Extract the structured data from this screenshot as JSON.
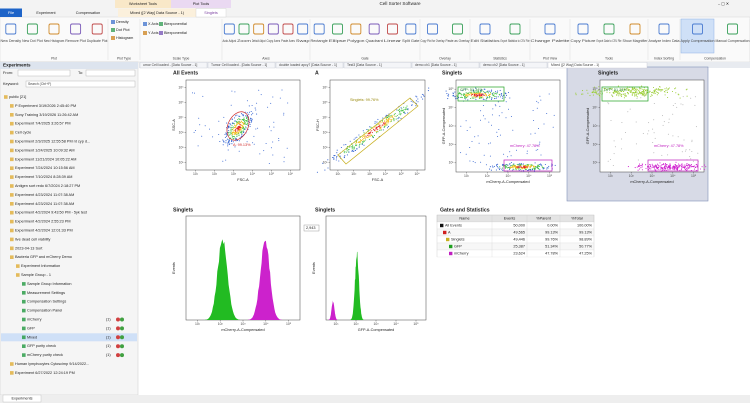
{
  "window": {
    "title": "Cell Sorter Software",
    "context_tabs": [
      "Worksheet Tools",
      "Plot Tools"
    ]
  },
  "tabs": [
    "File",
    "Experiment",
    "Compensation",
    "Mixed ([2 Way] Data Source - 1)",
    "Singlets"
  ],
  "ribbon": [
    {
      "label": "Plot",
      "buttons": [
        "New Density",
        "New Dot Plot",
        "New Histogram",
        "Remove Plot",
        "Duplicate Plot"
      ]
    },
    {
      "label": "Plot Type",
      "buttons": [
        "Density",
        "Dot Plot",
        "Histogram"
      ]
    },
    {
      "label": "Scale Type",
      "buttons": [
        "X Axis",
        "Biexponential",
        "Y Axis",
        "Biexponential"
      ]
    },
    {
      "label": "Axes",
      "buttons": [
        "Auto Adjust",
        "Zoom",
        "Default Adjust",
        "Copy Axes",
        "Paste Axes",
        "Swap"
      ]
    },
    {
      "label": "Gate",
      "buttons": [
        "Rectangle",
        "Ellipse",
        "Polygon",
        "Quadrant",
        "Linear",
        "Split Gate"
      ]
    },
    {
      "label": "Overlay",
      "buttons": [
        "Copy Plot for Overlay",
        "Paste as Overlay"
      ]
    },
    {
      "label": "Statistics",
      "buttons": [
        "Edit Statistics",
        "Export Statistics to CSV File"
      ]
    },
    {
      "label": "Plot View",
      "buttons": [
        "Change Palette"
      ]
    },
    {
      "label": "Tools",
      "buttons": [
        "Copy Picture",
        "Export Data to CSV File",
        "Show Magnifier"
      ]
    },
    {
      "label": "Index Sorting",
      "buttons": [
        "Analyze Index Data"
      ]
    },
    {
      "label": "Compensation",
      "buttons": [
        "Apply Compensation",
        "Manual Compensation"
      ]
    }
  ],
  "left_panel": {
    "header": "Experiments",
    "from_label": "From:",
    "to_label": "To:",
    "keyword_label": "Keyword:",
    "search_placeholder": "Search (Ctrl+F)",
    "tree": [
      {
        "label": "public [21]",
        "level": 0
      },
      {
        "label": "P Experiment 3/19/2026 2:45:40 PM",
        "level": 1
      },
      {
        "label": "Sony Training 3/19/2026 11:26:42 AM",
        "level": 1
      },
      {
        "label": "Experiment 7/4/2025 3:26:57 PM",
        "level": 1
      },
      {
        "label": "Cell cycle",
        "level": 1
      },
      {
        "label": "Experiment 2/3/2025 12:55:58 PM nt cyp d...",
        "level": 1
      },
      {
        "label": "Experiment 1/24/2025 10:09:32 AM",
        "level": 1
      },
      {
        "label": "Experiment 11/21/2024 10:05:22 AM",
        "level": 1
      },
      {
        "label": "Experiment 7/24/2024 10:15:56 AM",
        "level": 1
      },
      {
        "label": "Experiment 7/10/2024 8:28:39 AM",
        "level": 1
      },
      {
        "label": "Antigen sort redo 6/7/2024 2:18:27 PM",
        "level": 1
      },
      {
        "label": "Experiment 4/23/2024 11:07:38 AM",
        "level": 1
      },
      {
        "label": "Experiment 4/23/2024 11:07:38 AM",
        "level": 1
      },
      {
        "label": "Experiment 4/2/2024 9:43:50 PM - 5yk test",
        "level": 1
      },
      {
        "label": "Experiment 4/2/2024 2:55:23 PM",
        "level": 1
      },
      {
        "label": "Experiment 4/2/2024 12:01:33 PM",
        "level": 1
      },
      {
        "label": "live dead cell viability",
        "level": 1
      },
      {
        "label": "2023-04-13 Sort",
        "level": 1
      },
      {
        "label": "Bacteria GFP and mCherry Demo",
        "level": 1
      },
      {
        "label": "Experiment Information",
        "level": 2
      },
      {
        "label": "Sample Group - 1",
        "level": 2
      },
      {
        "label": "Sample Group Information",
        "level": 3
      },
      {
        "label": "Measurement Settings",
        "level": 3
      },
      {
        "label": "Compensation Settings",
        "level": 3
      },
      {
        "label": "Compensation Panel",
        "level": 3
      },
      {
        "label": "mCherry",
        "level": 3,
        "count": "(1)"
      },
      {
        "label": "GFP",
        "level": 3,
        "count": "(1)"
      },
      {
        "label": "Mixed",
        "level": 3,
        "count": "(1)",
        "selected": true
      },
      {
        "label": "GFP purity check",
        "level": 3,
        "count": "(1)"
      },
      {
        "label": "mCherry purity check",
        "level": 3,
        "count": "(1)"
      },
      {
        "label": "Human lymphocytes Cytoscimp 9/14/2022...",
        "level": 1
      },
      {
        "label": "Experiment 6/27/2022 12:24:19 PM",
        "level": 1
      }
    ],
    "bottom_tab": "Experiments"
  },
  "doc_tabs": [
    "umor Cell loaded - [Data Source - 1]",
    "Tumor Cell loaded - [Data Source - 1]",
    "double loaded apcy7 [Data Source - 1]",
    "Test3 [Data Source - 1]",
    "demo ch1 [Data Source - 1]",
    "demo ch2 [Data Source - 1]",
    "Mixed ([2 Way] Data Source - 1)"
  ],
  "plots": [
    {
      "title": "All Events",
      "x_label": "FSC-A",
      "y_label": "SSC-A",
      "gates": [
        "A: 99.13%"
      ],
      "xticks": [
        "10¹",
        "10²",
        "10³",
        "10⁴",
        "10⁵",
        "10⁶"
      ],
      "yticks": [
        "10¹",
        "10²",
        "10³",
        "10⁴",
        "10⁵",
        "10⁶"
      ]
    },
    {
      "title": "A",
      "x_label": "FSC-A",
      "y_label": "FSC-H",
      "gates": [
        "Singlets: 99.76%"
      ],
      "xticks": [
        "10¹",
        "10²",
        "10³",
        "10⁴",
        "10⁵",
        "10⁶"
      ],
      "yticks": [
        "10¹",
        "10²",
        "10³",
        "10⁴",
        "10⁵",
        "10⁶"
      ]
    },
    {
      "title": "Singlets",
      "x_label": "mCherry-A-Compensated",
      "y_label": "GFP-A-Compensated",
      "gates": [
        "GFP: 51.34%",
        "mCherry: 47.78%"
      ],
      "xticks": [
        "10¹",
        "10²",
        "10³",
        "10⁴",
        "10⁵"
      ],
      "yticks": [
        "10¹",
        "10²",
        "10³",
        "10⁴",
        "10⁵"
      ]
    },
    {
      "title": "Singlets",
      "x_label": "mCherry-A-Compensated",
      "y_label": "GFP-A-Compensated",
      "gates": [
        "GFP: 51.34%",
        "mCherry: 47.78%"
      ],
      "xticks": [
        "10¹",
        "10²",
        "10³",
        "10⁴",
        "10⁵"
      ],
      "yticks": [
        "10¹",
        "10²",
        "10³",
        "10⁴",
        "10⁵"
      ]
    },
    {
      "title": "Singlets",
      "x_label": "mCherry-A-Compensated",
      "y_label": "Events",
      "gates": [],
      "xticks": [
        "10¹",
        "10²",
        "10³",
        "10⁴",
        "10⁵"
      ],
      "yticks": []
    },
    {
      "title": "Singlets",
      "x_label": "GFP-A-Compensated",
      "y_label": "Events",
      "gates": [
        "2,943"
      ],
      "xticks": [
        "10¹",
        "10²",
        "10³",
        "10⁴",
        "10⁵"
      ],
      "yticks": []
    }
  ],
  "stats": {
    "title": "Gates and Statistics",
    "columns": [
      "Name",
      "Events",
      "%Parent",
      "%Total"
    ],
    "rows": [
      [
        "All Events",
        "50,000",
        "0.00%",
        "100.00%"
      ],
      [
        "A",
        "49,565",
        "99.13%",
        "99.13%"
      ],
      [
        "Singlets",
        "49,446",
        "99.76%",
        "98.89%"
      ],
      [
        "GFP",
        "25,387",
        "51.34%",
        "50.77%"
      ],
      [
        "mCherry",
        "23,624",
        "47.78%",
        "47.25%"
      ]
    ]
  }
}
